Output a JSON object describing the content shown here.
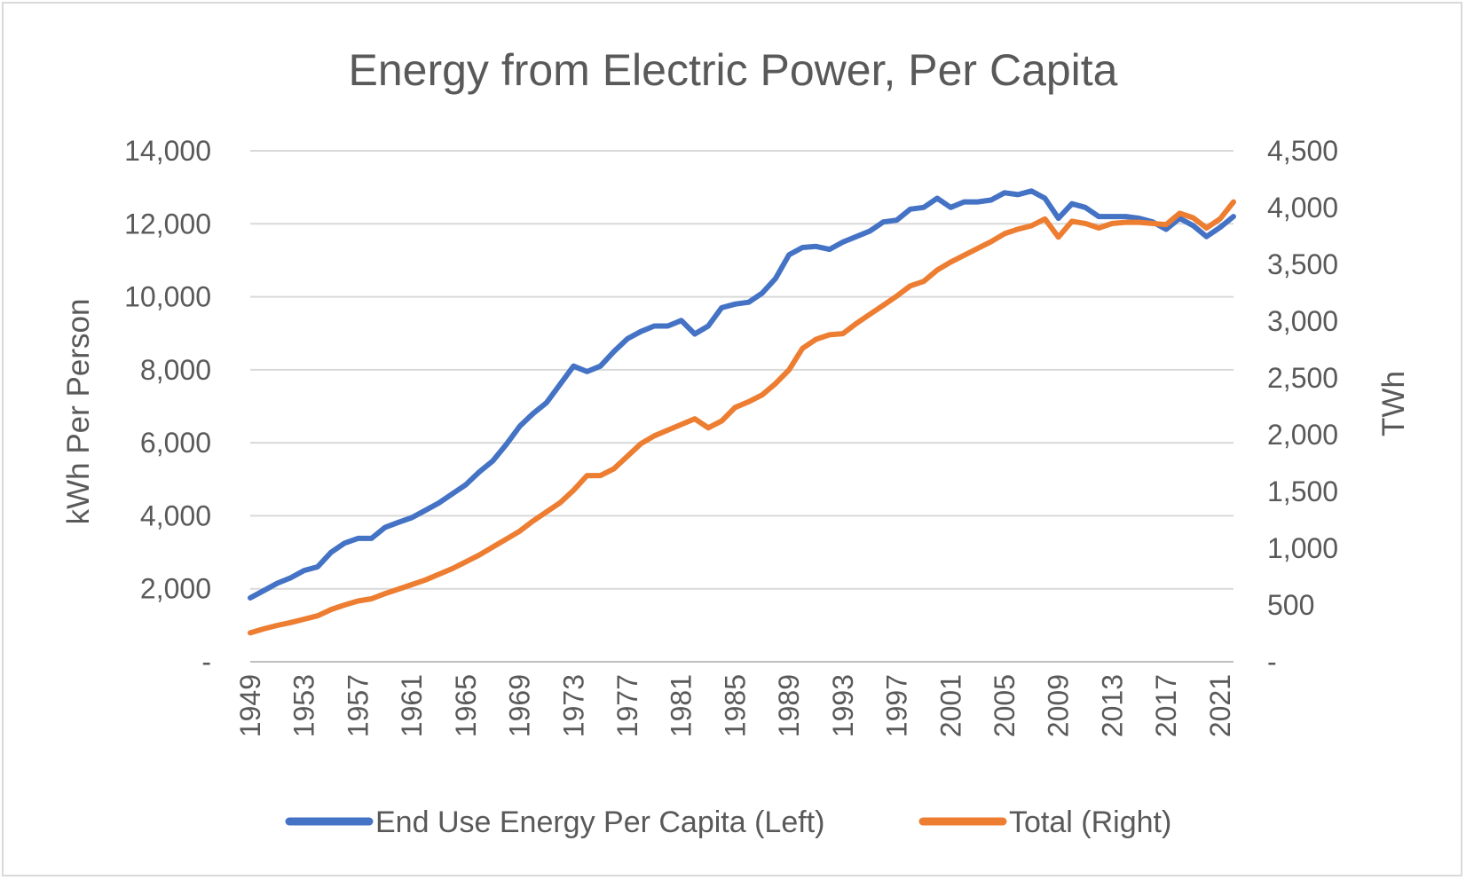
{
  "chart_data": {
    "type": "line",
    "title": "Energy from Electric Power, Per Capita",
    "ylabel_left": "kWh Per Person",
    "ylabel_right": "TWh",
    "ylim_left": [
      0,
      14000
    ],
    "ylim_right": [
      0,
      4500
    ],
    "yticks_left": [
      "-",
      "2,000",
      "4,000",
      "6,000",
      "8,000",
      "10,000",
      "12,000",
      "14,000"
    ],
    "yticks_right": [
      "-",
      "500",
      "1,000",
      "1,500",
      "2,000",
      "2,500",
      "3,000",
      "3,500",
      "4,000",
      "4,500"
    ],
    "xtick_labels": [
      "1949",
      "1953",
      "1957",
      "1961",
      "1965",
      "1969",
      "1973",
      "1977",
      "1981",
      "1985",
      "1989",
      "1993",
      "1997",
      "2001",
      "2005",
      "2009",
      "2013",
      "2017",
      "2021"
    ],
    "grid": true,
    "legend_position": "bottom",
    "x": [
      1949,
      1950,
      1951,
      1952,
      1953,
      1954,
      1955,
      1956,
      1957,
      1958,
      1959,
      1960,
      1961,
      1962,
      1963,
      1964,
      1965,
      1966,
      1967,
      1968,
      1969,
      1970,
      1971,
      1972,
      1973,
      1974,
      1975,
      1976,
      1977,
      1978,
      1979,
      1980,
      1981,
      1982,
      1983,
      1984,
      1985,
      1986,
      1987,
      1988,
      1989,
      1990,
      1991,
      1992,
      1993,
      1994,
      1995,
      1996,
      1997,
      1998,
      1999,
      2000,
      2001,
      2002,
      2003,
      2004,
      2005,
      2006,
      2007,
      2008,
      2009,
      2010,
      2011,
      2012,
      2013,
      2014,
      2015,
      2016,
      2017,
      2018,
      2019,
      2020,
      2021,
      2022
    ],
    "series": [
      {
        "name": "End Use Energy Per Capita (Left)",
        "axis": "left",
        "color": "#4472C4",
        "values": [
          1750,
          1950,
          2150,
          2300,
          2500,
          2600,
          3000,
          3250,
          3380,
          3380,
          3680,
          3820,
          3950,
          4150,
          4350,
          4600,
          4850,
          5200,
          5500,
          5950,
          6450,
          6800,
          7100,
          7600,
          8100,
          7950,
          8100,
          8500,
          8850,
          9050,
          9200,
          9200,
          9350,
          8980,
          9200,
          9700,
          9800,
          9850,
          10100,
          10500,
          11150,
          11350,
          11380,
          11300,
          11500,
          11650,
          11800,
          12050,
          12100,
          12400,
          12450,
          12700,
          12450,
          12600,
          12600,
          12650,
          12850,
          12800,
          12900,
          12700,
          12150,
          12550,
          12450,
          12200,
          12200,
          12200,
          12150,
          12050,
          11850,
          12150,
          11950,
          11650,
          11900,
          12200
        ]
      },
      {
        "name": "Total (Right)",
        "axis": "right",
        "color": "#ED7D31",
        "values": [
          255,
          290,
          320,
          345,
          375,
          405,
          460,
          500,
          535,
          555,
          600,
          640,
          680,
          720,
          770,
          820,
          880,
          940,
          1010,
          1080,
          1150,
          1240,
          1320,
          1400,
          1510,
          1640,
          1640,
          1700,
          1810,
          1920,
          1990,
          2040,
          2090,
          2140,
          2060,
          2120,
          2240,
          2290,
          2350,
          2450,
          2570,
          2760,
          2840,
          2880,
          2890,
          2980,
          3060,
          3140,
          3220,
          3310,
          3350,
          3450,
          3520,
          3580,
          3640,
          3700,
          3770,
          3810,
          3840,
          3900,
          3740,
          3880,
          3860,
          3820,
          3860,
          3870,
          3870,
          3860,
          3850,
          3950,
          3910,
          3820,
          3900,
          4050
        ]
      }
    ]
  }
}
